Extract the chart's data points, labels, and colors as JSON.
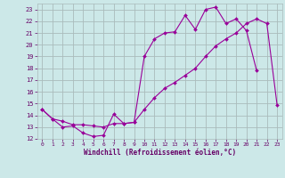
{
  "xlabel": "Windchill (Refroidissement éolien,°C)",
  "bg_color": "#cce8e8",
  "grid_color": "#aabbbb",
  "line_color": "#990099",
  "x_values": [
    0,
    1,
    2,
    3,
    4,
    5,
    6,
    7,
    8,
    9,
    10,
    11,
    12,
    13,
    14,
    15,
    16,
    17,
    18,
    19,
    20,
    21,
    22,
    23
  ],
  "line1_y": [
    14.5,
    13.7,
    13.0,
    13.1,
    12.5,
    12.2,
    12.3,
    14.1,
    13.3,
    13.4,
    19.0,
    20.5,
    21.0,
    21.1,
    22.5,
    21.3,
    23.0,
    23.2,
    21.8,
    22.2,
    21.2,
    17.8,
    null,
    null
  ],
  "line2_y": [
    14.5,
    13.7,
    13.5,
    13.2,
    13.2,
    13.1,
    13.0,
    13.3,
    13.3,
    13.4,
    14.5,
    15.5,
    16.3,
    16.8,
    17.4,
    18.0,
    19.0,
    19.9,
    20.5,
    21.0,
    21.8,
    22.2,
    21.8,
    14.9
  ],
  "ylim": [
    12,
    23.5
  ],
  "xlim": [
    -0.5,
    23.5
  ],
  "yticks": [
    12,
    13,
    14,
    15,
    16,
    17,
    18,
    19,
    20,
    21,
    22,
    23
  ],
  "xticks": [
    0,
    1,
    2,
    3,
    4,
    5,
    6,
    7,
    8,
    9,
    10,
    11,
    12,
    13,
    14,
    15,
    16,
    17,
    18,
    19,
    20,
    21,
    22,
    23
  ]
}
